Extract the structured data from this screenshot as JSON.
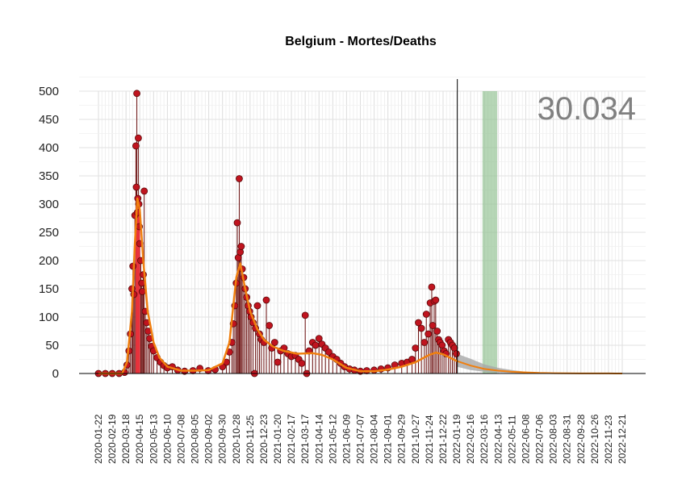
{
  "chart_data": {
    "type": "line",
    "title": "Belgium - Mortes/Deaths",
    "total_label": "30.034",
    "ylim": [
      0,
      500
    ],
    "y_ticks": [
      0,
      50,
      100,
      150,
      200,
      250,
      300,
      350,
      400,
      450,
      500
    ],
    "x_ticks": [
      "2020-01-22",
      "2020-02-19",
      "2020-03-18",
      "2020-04-15",
      "2020-05-13",
      "2020-06-10",
      "2020-07-08",
      "2020-08-05",
      "2020-09-02",
      "2020-09-30",
      "2020-10-28",
      "2020-11-25",
      "2020-12-23",
      "2021-01-20",
      "2021-02-17",
      "2021-03-17",
      "2021-04-14",
      "2021-05-12",
      "2021-06-09",
      "2021-07-07",
      "2021-08-04",
      "2021-09-01",
      "2021-09-29",
      "2021-10-27",
      "2021-11-24",
      "2021-12-22",
      "2022-01-19",
      "2022-02-16",
      "2022-03-16",
      "2022-04-13",
      "2022-05-11",
      "2022-06-08",
      "2022-07-06",
      "2022-08-03",
      "2022-08-31",
      "2022-09-28",
      "2022-10-26",
      "2022-11-23",
      "2022-12-21"
    ],
    "x_range": [
      "2020-01-22",
      "2022-12-21"
    ],
    "today_line": "2022-01-20",
    "shaded_band": [
      "2022-03-12",
      "2022-04-11"
    ],
    "grid": true,
    "colors": {
      "points": "#c0141f",
      "point_edge": "#5a0a0a",
      "stems": "#6b0f0f",
      "trend": "#f07f0f",
      "forecast_band": "#a8a8a8",
      "shaded_band": "#8fc08f",
      "highlight_bars": "#e8323c"
    },
    "highlight_bars": [
      {
        "date": "2020-04-09",
        "value": 310
      },
      {
        "date": "2020-04-13",
        "value": 310
      }
    ],
    "daily_deaths": [
      {
        "date": "2020-01-22",
        "value": 0
      },
      {
        "date": "2020-02-05",
        "value": 0
      },
      {
        "date": "2020-02-19",
        "value": 0
      },
      {
        "date": "2020-03-04",
        "value": 0
      },
      {
        "date": "2020-03-15",
        "value": 2
      },
      {
        "date": "2020-03-20",
        "value": 15
      },
      {
        "date": "2020-03-24",
        "value": 40
      },
      {
        "date": "2020-03-27",
        "value": 70
      },
      {
        "date": "2020-03-30",
        "value": 150
      },
      {
        "date": "2020-04-01",
        "value": 190
      },
      {
        "date": "2020-04-03",
        "value": 140
      },
      {
        "date": "2020-04-05",
        "value": 280
      },
      {
        "date": "2020-04-07",
        "value": 403
      },
      {
        "date": "2020-04-08",
        "value": 330
      },
      {
        "date": "2020-04-09",
        "value": 496
      },
      {
        "date": "2020-04-10",
        "value": 285
      },
      {
        "date": "2020-04-11",
        "value": 310
      },
      {
        "date": "2020-04-12",
        "value": 417
      },
      {
        "date": "2020-04-13",
        "value": 300
      },
      {
        "date": "2020-04-14",
        "value": 260
      },
      {
        "date": "2020-04-15",
        "value": 230
      },
      {
        "date": "2020-04-17",
        "value": 200
      },
      {
        "date": "2020-04-19",
        "value": 160
      },
      {
        "date": "2020-04-20",
        "value": 145
      },
      {
        "date": "2020-04-22",
        "value": 175
      },
      {
        "date": "2020-04-24",
        "value": 323
      },
      {
        "date": "2020-04-26",
        "value": 110
      },
      {
        "date": "2020-04-29",
        "value": 90
      },
      {
        "date": "2020-05-02",
        "value": 75
      },
      {
        "date": "2020-05-05",
        "value": 62
      },
      {
        "date": "2020-05-09",
        "value": 48
      },
      {
        "date": "2020-05-13",
        "value": 40
      },
      {
        "date": "2020-05-20",
        "value": 28
      },
      {
        "date": "2020-05-27",
        "value": 20
      },
      {
        "date": "2020-06-03",
        "value": 14
      },
      {
        "date": "2020-06-10",
        "value": 10
      },
      {
        "date": "2020-06-20",
        "value": 12
      },
      {
        "date": "2020-07-01",
        "value": 6
      },
      {
        "date": "2020-07-15",
        "value": 4
      },
      {
        "date": "2020-08-01",
        "value": 5
      },
      {
        "date": "2020-08-15",
        "value": 9
      },
      {
        "date": "2020-09-01",
        "value": 5
      },
      {
        "date": "2020-09-15",
        "value": 7
      },
      {
        "date": "2020-09-30",
        "value": 12
      },
      {
        "date": "2020-10-08",
        "value": 20
      },
      {
        "date": "2020-10-14",
        "value": 38
      },
      {
        "date": "2020-10-19",
        "value": 55
      },
      {
        "date": "2020-10-22",
        "value": 88
      },
      {
        "date": "2020-10-25",
        "value": 120
      },
      {
        "date": "2020-10-28",
        "value": 160
      },
      {
        "date": "2020-10-30",
        "value": 267
      },
      {
        "date": "2020-11-01",
        "value": 205
      },
      {
        "date": "2020-11-03",
        "value": 345
      },
      {
        "date": "2020-11-05",
        "value": 215
      },
      {
        "date": "2020-11-07",
        "value": 225
      },
      {
        "date": "2020-11-09",
        "value": 185
      },
      {
        "date": "2020-11-12",
        "value": 170
      },
      {
        "date": "2020-11-15",
        "value": 150
      },
      {
        "date": "2020-11-18",
        "value": 135
      },
      {
        "date": "2020-11-21",
        "value": 120
      },
      {
        "date": "2020-11-24",
        "value": 110
      },
      {
        "date": "2020-11-27",
        "value": 100
      },
      {
        "date": "2020-12-01",
        "value": 90
      },
      {
        "date": "2020-12-04",
        "value": 0
      },
      {
        "date": "2020-12-06",
        "value": 80
      },
      {
        "date": "2020-12-10",
        "value": 120
      },
      {
        "date": "2020-12-14",
        "value": 70
      },
      {
        "date": "2020-12-18",
        "value": 60
      },
      {
        "date": "2020-12-23",
        "value": 55
      },
      {
        "date": "2020-12-28",
        "value": 130
      },
      {
        "date": "2021-01-03",
        "value": 85
      },
      {
        "date": "2021-01-08",
        "value": 45
      },
      {
        "date": "2021-01-14",
        "value": 55
      },
      {
        "date": "2021-01-20",
        "value": 20
      },
      {
        "date": "2021-01-26",
        "value": 40
      },
      {
        "date": "2021-02-02",
        "value": 45
      },
      {
        "date": "2021-02-10",
        "value": 35
      },
      {
        "date": "2021-02-17",
        "value": 30
      },
      {
        "date": "2021-02-25",
        "value": 32
      },
      {
        "date": "2021-03-04",
        "value": 25
      },
      {
        "date": "2021-03-10",
        "value": 18
      },
      {
        "date": "2021-03-17",
        "value": 103
      },
      {
        "date": "2021-03-20",
        "value": 0
      },
      {
        "date": "2021-03-25",
        "value": 40
      },
      {
        "date": "2021-04-01",
        "value": 55
      },
      {
        "date": "2021-04-07",
        "value": 50
      },
      {
        "date": "2021-04-14",
        "value": 62
      },
      {
        "date": "2021-04-20",
        "value": 52
      },
      {
        "date": "2021-04-27",
        "value": 45
      },
      {
        "date": "2021-05-04",
        "value": 38
      },
      {
        "date": "2021-05-12",
        "value": 30
      },
      {
        "date": "2021-05-20",
        "value": 25
      },
      {
        "date": "2021-05-28",
        "value": 18
      },
      {
        "date": "2021-06-05",
        "value": 12
      },
      {
        "date": "2021-06-15",
        "value": 8
      },
      {
        "date": "2021-06-25",
        "value": 6
      },
      {
        "date": "2021-07-07",
        "value": 4
      },
      {
        "date": "2021-07-20",
        "value": 5
      },
      {
        "date": "2021-08-04",
        "value": 6
      },
      {
        "date": "2021-08-18",
        "value": 8
      },
      {
        "date": "2021-09-01",
        "value": 10
      },
      {
        "date": "2021-09-15",
        "value": 15
      },
      {
        "date": "2021-09-29",
        "value": 18
      },
      {
        "date": "2021-10-10",
        "value": 20
      },
      {
        "date": "2021-10-20",
        "value": 25
      },
      {
        "date": "2021-10-27",
        "value": 45
      },
      {
        "date": "2021-11-02",
        "value": 90
      },
      {
        "date": "2021-11-08",
        "value": 80
      },
      {
        "date": "2021-11-14",
        "value": 55
      },
      {
        "date": "2021-11-18",
        "value": 105
      },
      {
        "date": "2021-11-22",
        "value": 70
      },
      {
        "date": "2021-11-26",
        "value": 125
      },
      {
        "date": "2021-11-29",
        "value": 153
      },
      {
        "date": "2021-12-01",
        "value": 85
      },
      {
        "date": "2021-12-04",
        "value": 128
      },
      {
        "date": "2021-12-07",
        "value": 130
      },
      {
        "date": "2021-12-10",
        "value": 75
      },
      {
        "date": "2021-12-13",
        "value": 60
      },
      {
        "date": "2021-12-16",
        "value": 55
      },
      {
        "date": "2021-12-20",
        "value": 50
      },
      {
        "date": "2021-12-24",
        "value": 40
      },
      {
        "date": "2021-12-28",
        "value": 35
      },
      {
        "date": "2022-01-02",
        "value": 60
      },
      {
        "date": "2022-01-06",
        "value": 55
      },
      {
        "date": "2022-01-10",
        "value": 50
      },
      {
        "date": "2022-01-14",
        "value": 45
      },
      {
        "date": "2022-01-18",
        "value": 35
      }
    ],
    "trend": [
      {
        "date": "2020-01-22",
        "value": 0
      },
      {
        "date": "2020-03-10",
        "value": 0
      },
      {
        "date": "2020-03-20",
        "value": 20
      },
      {
        "date": "2020-03-30",
        "value": 110
      },
      {
        "date": "2020-04-05",
        "value": 230
      },
      {
        "date": "2020-04-10",
        "value": 310
      },
      {
        "date": "2020-04-15",
        "value": 290
      },
      {
        "date": "2020-04-22",
        "value": 200
      },
      {
        "date": "2020-05-01",
        "value": 110
      },
      {
        "date": "2020-05-13",
        "value": 55
      },
      {
        "date": "2020-05-25",
        "value": 28
      },
      {
        "date": "2020-06-10",
        "value": 12
      },
      {
        "date": "2020-07-08",
        "value": 5
      },
      {
        "date": "2020-08-05",
        "value": 5
      },
      {
        "date": "2020-09-02",
        "value": 6
      },
      {
        "date": "2020-09-30",
        "value": 18
      },
      {
        "date": "2020-10-14",
        "value": 55
      },
      {
        "date": "2020-10-28",
        "value": 170
      },
      {
        "date": "2020-11-05",
        "value": 195
      },
      {
        "date": "2020-11-15",
        "value": 150
      },
      {
        "date": "2020-11-25",
        "value": 110
      },
      {
        "date": "2020-12-10",
        "value": 78
      },
      {
        "date": "2020-12-23",
        "value": 60
      },
      {
        "date": "2021-01-10",
        "value": 48
      },
      {
        "date": "2021-02-01",
        "value": 40
      },
      {
        "date": "2021-03-01",
        "value": 35
      },
      {
        "date": "2021-04-01",
        "value": 36
      },
      {
        "date": "2021-04-20",
        "value": 33
      },
      {
        "date": "2021-05-12",
        "value": 25
      },
      {
        "date": "2021-06-09",
        "value": 10
      },
      {
        "date": "2021-07-07",
        "value": 4
      },
      {
        "date": "2021-08-04",
        "value": 4
      },
      {
        "date": "2021-09-01",
        "value": 7
      },
      {
        "date": "2021-09-29",
        "value": 12
      },
      {
        "date": "2021-10-27",
        "value": 20
      },
      {
        "date": "2021-11-24",
        "value": 33
      },
      {
        "date": "2021-12-08",
        "value": 37
      },
      {
        "date": "2021-12-22",
        "value": 34
      },
      {
        "date": "2022-01-19",
        "value": 22
      }
    ],
    "forecast": [
      {
        "date": "2022-01-19",
        "value": 22
      },
      {
        "date": "2022-02-16",
        "value": 14
      },
      {
        "date": "2022-03-16",
        "value": 8
      },
      {
        "date": "2022-04-13",
        "value": 5
      },
      {
        "date": "2022-05-11",
        "value": 3
      },
      {
        "date": "2022-06-08",
        "value": 2
      },
      {
        "date": "2022-07-06",
        "value": 1
      },
      {
        "date": "2022-08-03",
        "value": 0.5
      },
      {
        "date": "2022-09-28",
        "value": 0.2
      },
      {
        "date": "2022-11-23",
        "value": 0.1
      },
      {
        "date": "2022-12-21",
        "value": 0
      }
    ],
    "forecast_upper": [
      {
        "date": "2022-01-19",
        "value": 35
      },
      {
        "date": "2022-02-16",
        "value": 26
      },
      {
        "date": "2022-03-16",
        "value": 16
      },
      {
        "date": "2022-04-13",
        "value": 10
      },
      {
        "date": "2022-05-11",
        "value": 6
      },
      {
        "date": "2022-06-08",
        "value": 3
      },
      {
        "date": "2022-07-06",
        "value": 1.5
      },
      {
        "date": "2022-08-03",
        "value": 0.6
      },
      {
        "date": "2022-12-21",
        "value": 0
      }
    ],
    "forecast_lower": [
      {
        "date": "2022-01-19",
        "value": 12
      },
      {
        "date": "2022-02-16",
        "value": 6
      },
      {
        "date": "2022-03-16",
        "value": 3
      },
      {
        "date": "2022-04-13",
        "value": 1.5
      },
      {
        "date": "2022-05-11",
        "value": 0.8
      },
      {
        "date": "2022-06-08",
        "value": 0.4
      },
      {
        "date": "2022-07-06",
        "value": 0.2
      },
      {
        "date": "2022-12-21",
        "value": 0
      }
    ]
  }
}
